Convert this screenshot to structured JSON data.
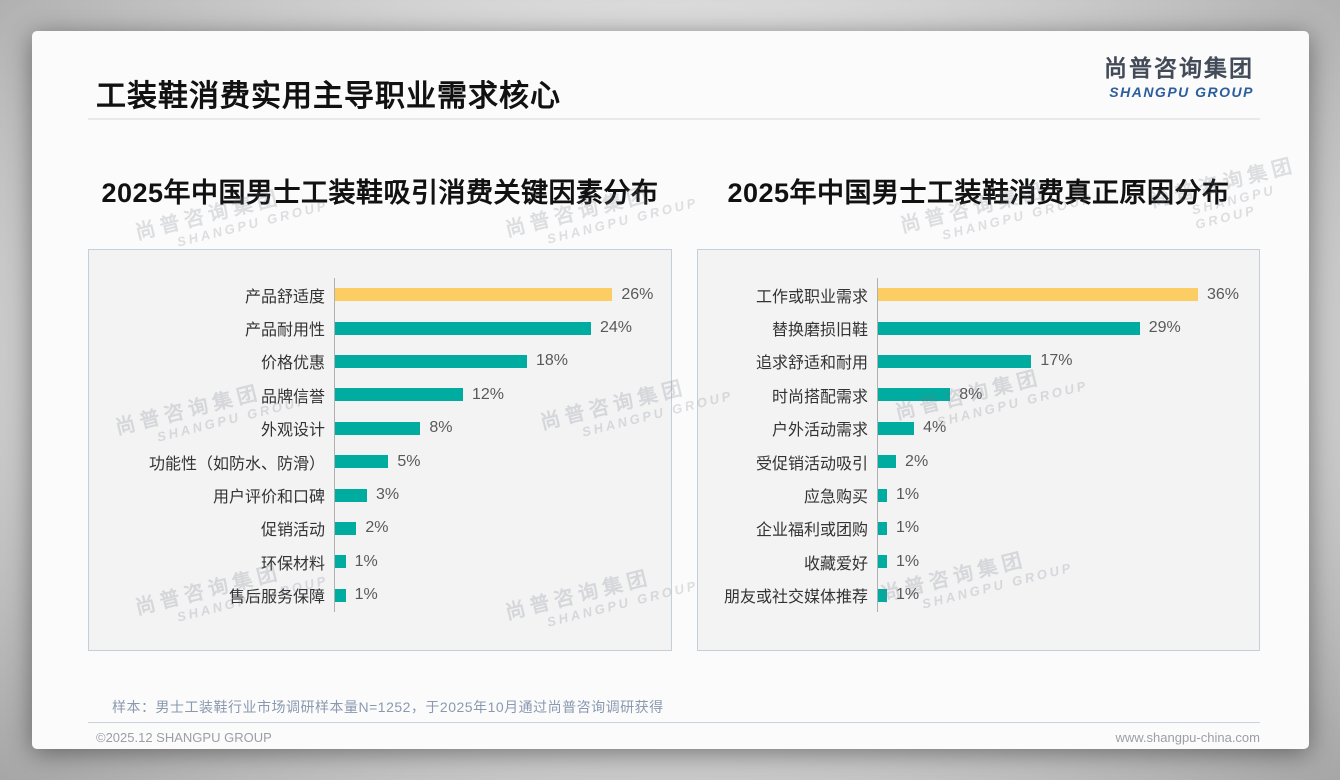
{
  "header": {
    "title": "工装鞋消费实用主导职业需求核心"
  },
  "logo": {
    "cn": "尚普咨询集团",
    "en": "SHANGPU GROUP"
  },
  "watermark": {
    "cn": "尚普咨询集团",
    "en": "SHANGPU GROUP"
  },
  "chart_data": [
    {
      "type": "bar",
      "orientation": "horizontal",
      "title": "2025年中国男士工装鞋吸引消费关键因素分布",
      "categories": [
        "产品舒适度",
        "产品耐用性",
        "价格优惠",
        "品牌信誉",
        "外观设计",
        "功能性（如防水、防滑）",
        "用户评价和口碑",
        "促销活动",
        "环保材料",
        "售后服务保障"
      ],
      "values": [
        26,
        24,
        18,
        12,
        8,
        5,
        3,
        2,
        1,
        1
      ],
      "value_suffix": "%",
      "xlim": [
        0,
        30
      ],
      "grid": false,
      "highlight_index": 0,
      "bar_color": "#00aca0",
      "highlight_color": "#fbcd63"
    },
    {
      "type": "bar",
      "orientation": "horizontal",
      "title": "2025年中国男士工装鞋消费真正原因分布",
      "categories": [
        "工作或职业需求",
        "替换磨损旧鞋",
        "追求舒适和耐用",
        "时尚搭配需求",
        "户外活动需求",
        "受促销活动吸引",
        "应急购买",
        "企业福利或团购",
        "收藏爱好",
        "朋友或社交媒体推荐"
      ],
      "values": [
        36,
        29,
        17,
        8,
        4,
        2,
        1,
        1,
        1,
        1
      ],
      "value_suffix": "%",
      "xlim": [
        0,
        40
      ],
      "grid": false,
      "highlight_index": 0,
      "bar_color": "#00aca0",
      "highlight_color": "#fbcd63"
    }
  ],
  "footer": {
    "sample_note": "样本：男士工装鞋行业市场调研样本量N=1252，于2025年10月通过尚普咨询调研获得",
    "copyright": "©2025.12 SHANGPU GROUP",
    "website": "www.shangpu-china.com"
  }
}
